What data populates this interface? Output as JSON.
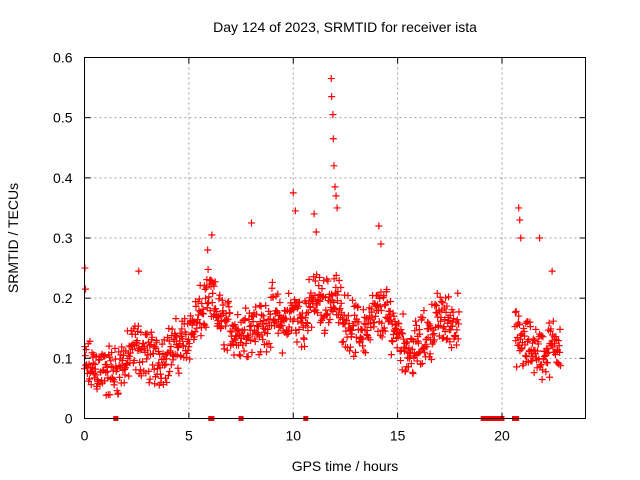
{
  "chart_data": {
    "type": "scatter",
    "title": "Day 124 of 2023, SRMTID for receiver ista",
    "xlabel": "GPS time / hours",
    "ylabel": "SRMTID / TECUs",
    "xlim": [
      0,
      24
    ],
    "ylim": [
      0,
      0.6
    ],
    "x_ticks": [
      0,
      5,
      10,
      15,
      20
    ],
    "y_ticks": [
      0,
      0.1,
      0.2,
      0.3,
      0.4,
      0.5,
      0.6
    ],
    "grid": true,
    "marker": "+",
    "series_color": "#ff0000",
    "trend": [
      [
        0.0,
        0.085
      ],
      [
        0.5,
        0.085
      ],
      [
        1.0,
        0.075
      ],
      [
        1.5,
        0.08
      ],
      [
        2.0,
        0.095
      ],
      [
        2.5,
        0.12
      ],
      [
        3.0,
        0.105
      ],
      [
        3.5,
        0.095
      ],
      [
        4.0,
        0.11
      ],
      [
        4.5,
        0.12
      ],
      [
        5.0,
        0.14
      ],
      [
        5.5,
        0.17
      ],
      [
        6.0,
        0.2
      ],
      [
        6.5,
        0.165
      ],
      [
        7.0,
        0.15
      ],
      [
        7.5,
        0.14
      ],
      [
        8.0,
        0.16
      ],
      [
        8.5,
        0.145
      ],
      [
        9.0,
        0.175
      ],
      [
        9.5,
        0.155
      ],
      [
        10.0,
        0.175
      ],
      [
        10.5,
        0.16
      ],
      [
        11.0,
        0.2
      ],
      [
        11.5,
        0.19
      ],
      [
        12.0,
        0.2
      ],
      [
        12.5,
        0.165
      ],
      [
        13.0,
        0.145
      ],
      [
        13.5,
        0.15
      ],
      [
        14.0,
        0.175
      ],
      [
        14.5,
        0.17
      ],
      [
        15.0,
        0.145
      ],
      [
        15.5,
        0.11
      ],
      [
        16.0,
        0.12
      ],
      [
        16.5,
        0.14
      ],
      [
        17.0,
        0.17
      ],
      [
        17.5,
        0.16
      ],
      [
        17.9,
        0.16
      ],
      [
        20.7,
        0.135
      ],
      [
        21.0,
        0.12
      ],
      [
        21.5,
        0.12
      ],
      [
        22.0,
        0.105
      ],
      [
        22.5,
        0.125
      ],
      [
        22.8,
        0.13
      ]
    ],
    "spread": 0.055,
    "sample_step_hours": 0.02,
    "gaps_hours": [
      [
        17.95,
        20.6
      ]
    ],
    "notable_points": [
      [
        0.02,
        0.25
      ],
      [
        0.05,
        0.215
      ],
      [
        2.6,
        0.245
      ],
      [
        5.9,
        0.28
      ],
      [
        6.1,
        0.305
      ],
      [
        8.0,
        0.325
      ],
      [
        10.0,
        0.375
      ],
      [
        10.1,
        0.345
      ],
      [
        11.0,
        0.34
      ],
      [
        11.1,
        0.31
      ],
      [
        11.82,
        0.565
      ],
      [
        11.84,
        0.535
      ],
      [
        11.9,
        0.505
      ],
      [
        11.92,
        0.465
      ],
      [
        11.95,
        0.42
      ],
      [
        12.0,
        0.385
      ],
      [
        12.05,
        0.37
      ],
      [
        12.1,
        0.35
      ],
      [
        14.1,
        0.32
      ],
      [
        14.2,
        0.29
      ],
      [
        20.8,
        0.35
      ],
      [
        20.85,
        0.33
      ],
      [
        20.9,
        0.3
      ],
      [
        21.8,
        0.3
      ],
      [
        22.4,
        0.245
      ]
    ],
    "zero_points": [
      1.5,
      6.05,
      6.1,
      7.5,
      10.6,
      19.1,
      19.25,
      19.4,
      19.55,
      19.7,
      19.85,
      20.0,
      20.6,
      20.7
    ]
  }
}
